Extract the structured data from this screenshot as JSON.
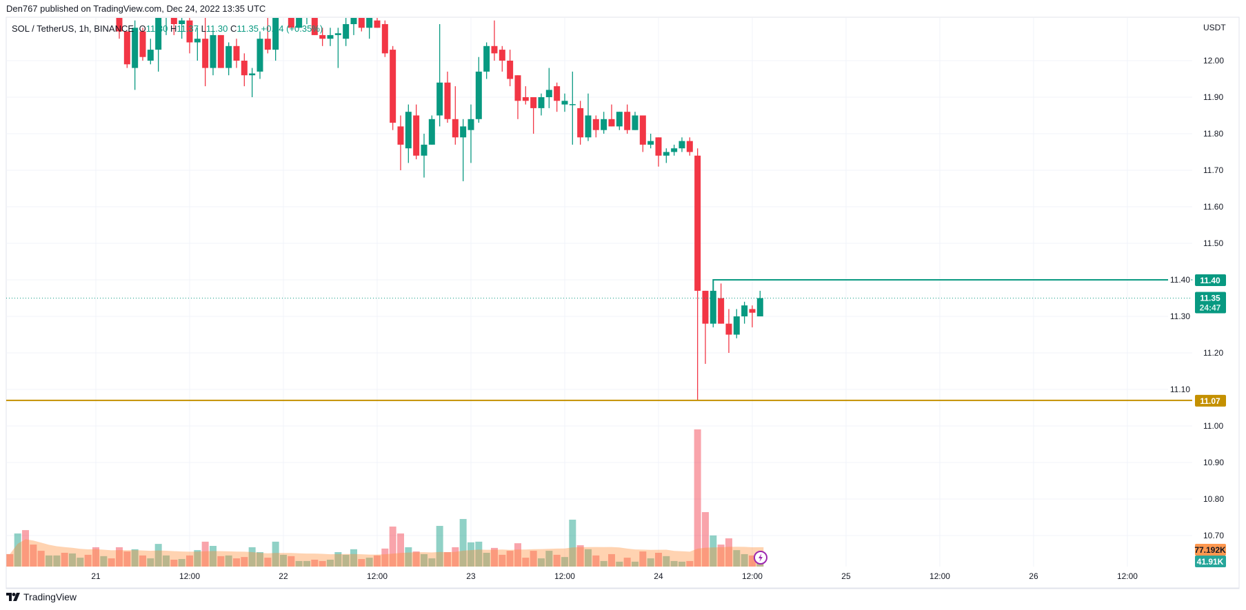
{
  "header": {
    "published": "Den767 published on TradingView.com, Dec 24, 2022 13:35 UTC"
  },
  "legend": {
    "symbol": "SOL / TetherUS, 1h, BINANCE",
    "open_label": "O",
    "open": "11.30",
    "high_label": "H",
    "high": "11.37",
    "low_label": "L",
    "low": "11.30",
    "close_label": "C",
    "close": "11.35",
    "change": "+0.04 (+0.35%)"
  },
  "footer": {
    "brand": "TradingView"
  },
  "colors": {
    "up": "#089981",
    "down": "#F23645",
    "support": "#C49000",
    "volume_ma": "#FF9850",
    "alert_icon": "#9C27B0"
  },
  "icons": {
    "alert": "lightning-icon",
    "brand": "tradingview-logo-icon"
  },
  "chart_data": {
    "type": "candlestick",
    "interval": "1h",
    "currency_label": "USDT",
    "price_ticks": [
      "12.00",
      "11.90",
      "11.80",
      "11.70",
      "11.60",
      "11.50",
      "11.40",
      "11.30",
      "11.20",
      "11.10",
      "11.00",
      "10.90",
      "10.80",
      "10.70"
    ],
    "ylim": [
      10.63,
      12.12
    ],
    "grid": true,
    "time_ticks": [
      {
        "label": "21",
        "hours": 0
      },
      {
        "label": "12:00",
        "hours": 12
      },
      {
        "label": "22",
        "hours": 24
      },
      {
        "label": "12:00",
        "hours": 36
      },
      {
        "label": "23",
        "hours": 48
      },
      {
        "label": "12:00",
        "hours": 60
      },
      {
        "label": "24",
        "hours": 72
      },
      {
        "label": "12:00",
        "hours": 84
      },
      {
        "label": "25",
        "hours": 96
      },
      {
        "label": "12:00",
        "hours": 108
      },
      {
        "label": "26",
        "hours": 120
      },
      {
        "label": "12:00",
        "hours": 132
      }
    ],
    "first_candle": "Dec 21 03:00",
    "candles_ohlc": [
      [
        12.15,
        12.17,
        12.06,
        12.08
      ],
      [
        12.08,
        12.08,
        11.98,
        11.99
      ],
      [
        11.98,
        12.11,
        11.92,
        12.09
      ],
      [
        12.08,
        12.09,
        12.0,
        12.01
      ],
      [
        12.0,
        12.06,
        11.99,
        12.03
      ],
      [
        12.03,
        12.15,
        11.97,
        12.14
      ],
      [
        12.14,
        12.18,
        12.07,
        12.16
      ],
      [
        12.16,
        12.18,
        12.07,
        12.1
      ],
      [
        12.1,
        12.14,
        12.06,
        12.11
      ],
      [
        12.11,
        12.14,
        12.02,
        12.05
      ],
      [
        12.05,
        12.09,
        12.0,
        12.06
      ],
      [
        12.06,
        12.14,
        11.93,
        11.98
      ],
      [
        11.98,
        12.08,
        11.96,
        12.07
      ],
      [
        12.07,
        12.07,
        11.98,
        11.98
      ],
      [
        11.98,
        12.05,
        11.96,
        12.04
      ],
      [
        12.04,
        12.06,
        11.98,
        12.0
      ],
      [
        12.0,
        12.02,
        11.93,
        11.96
      ],
      [
        11.96,
        11.98,
        11.9,
        11.965
      ],
      [
        11.97,
        12.08,
        11.95,
        12.06
      ],
      [
        12.06,
        12.14,
        12.02,
        12.03
      ],
      [
        12.03,
        12.16,
        12.0,
        12.15
      ],
      [
        12.15,
        12.19,
        12.12,
        12.17
      ],
      [
        12.17,
        12.18,
        12.09,
        12.09
      ],
      [
        12.09,
        12.15,
        12.09,
        12.14
      ],
      [
        12.14,
        12.17,
        12.1,
        12.16
      ],
      [
        12.16,
        12.17,
        12.07,
        12.07
      ],
      [
        12.07,
        12.09,
        12.04,
        12.06
      ],
      [
        12.06,
        12.09,
        12.04,
        12.07
      ],
      [
        12.07,
        12.09,
        11.98,
        12.075
      ],
      [
        12.06,
        12.12,
        12.04,
        12.1
      ],
      [
        12.1,
        12.15,
        12.07,
        12.13
      ],
      [
        12.13,
        12.15,
        12.08,
        12.09
      ],
      [
        12.09,
        12.16,
        12.06,
        12.14
      ],
      [
        12.11,
        12.12,
        12.09,
        12.09
      ],
      [
        12.1,
        12.11,
        12.01,
        12.02
      ],
      [
        12.03,
        12.04,
        11.81,
        11.83
      ],
      [
        11.82,
        11.85,
        11.7,
        11.77
      ],
      [
        11.76,
        11.88,
        11.72,
        11.86
      ],
      [
        11.85,
        11.88,
        11.73,
        11.74
      ],
      [
        11.74,
        11.8,
        11.68,
        11.77
      ],
      [
        11.77,
        11.85,
        11.77,
        11.84
      ],
      [
        11.85,
        12.1,
        11.82,
        11.94
      ],
      [
        11.94,
        11.97,
        11.83,
        11.84
      ],
      [
        11.84,
        11.93,
        11.77,
        11.79
      ],
      [
        11.79,
        11.84,
        11.67,
        11.82
      ],
      [
        11.81,
        11.88,
        11.72,
        11.84
      ],
      [
        11.84,
        12.01,
        11.83,
        11.97
      ],
      [
        11.97,
        12.05,
        11.95,
        12.04
      ],
      [
        12.04,
        12.11,
        12.0,
        12.02
      ],
      [
        12.03,
        12.04,
        11.97,
        12.0
      ],
      [
        12.0,
        12.03,
        11.93,
        11.95
      ],
      [
        11.96,
        11.96,
        11.84,
        11.89
      ],
      [
        11.9,
        11.93,
        11.88,
        11.89
      ],
      [
        11.9,
        11.9,
        11.8,
        11.87
      ],
      [
        11.87,
        11.91,
        11.85,
        11.9
      ],
      [
        11.9,
        11.98,
        11.87,
        11.92
      ],
      [
        11.93,
        11.94,
        11.86,
        11.89
      ],
      [
        11.88,
        11.91,
        11.86,
        11.89
      ],
      [
        11.88,
        11.97,
        11.77,
        11.881
      ],
      [
        11.87,
        11.89,
        11.77,
        11.79
      ],
      [
        11.79,
        11.91,
        11.78,
        11.85
      ],
      [
        11.84,
        11.85,
        11.79,
        11.81
      ],
      [
        11.81,
        11.86,
        11.8,
        11.84
      ],
      [
        11.84,
        11.88,
        11.82,
        11.82
      ],
      [
        11.82,
        11.86,
        11.81,
        11.86
      ],
      [
        11.86,
        11.88,
        11.8,
        11.81
      ],
      [
        11.81,
        11.86,
        11.81,
        11.85
      ],
      [
        11.85,
        11.85,
        11.75,
        11.77
      ],
      [
        11.77,
        11.8,
        11.76,
        11.78
      ],
      [
        11.79,
        11.79,
        11.71,
        11.74
      ],
      [
        11.74,
        11.76,
        11.72,
        11.75
      ],
      [
        11.75,
        11.77,
        11.74,
        11.76
      ],
      [
        11.76,
        11.79,
        11.75,
        11.78
      ],
      [
        11.78,
        11.79,
        11.74,
        11.75
      ],
      [
        11.74,
        11.76,
        11.07,
        11.37
      ],
      [
        11.37,
        11.37,
        11.17,
        11.28
      ],
      [
        11.28,
        11.4,
        11.27,
        11.37
      ],
      [
        11.35,
        11.39,
        11.28,
        11.28
      ],
      [
        11.28,
        11.32,
        11.2,
        11.25
      ],
      [
        11.25,
        11.32,
        11.24,
        11.3
      ],
      [
        11.3,
        11.34,
        11.28,
        11.33
      ],
      [
        11.32,
        11.33,
        11.27,
        11.31
      ],
      [
        11.3,
        11.37,
        11.3,
        11.35
      ]
    ],
    "volume_first_bar": "Dec 20 13:00",
    "volume_pre_direction": [
      "down",
      "up",
      "down",
      "down",
      "down",
      "up",
      "up",
      "down",
      "up",
      "up",
      "down",
      "down",
      "up",
      "down"
    ],
    "volume_k": [
      56,
      149,
      164,
      99,
      71,
      50,
      50,
      62,
      59,
      40,
      53,
      87,
      47,
      37,
      87,
      68,
      78,
      50,
      37,
      102,
      50,
      31,
      34,
      50,
      74,
      112,
      93,
      47,
      50,
      37,
      43,
      87,
      65,
      40,
      112,
      53,
      47,
      25,
      25,
      31,
      25,
      31,
      65,
      53,
      78,
      34,
      40,
      50,
      81,
      180,
      149,
      87,
      68,
      56,
      37,
      183,
      65,
      87,
      214,
      109,
      112,
      62,
      84,
      53,
      71,
      105,
      40,
      71,
      37,
      71,
      53,
      43,
      211,
      96,
      78,
      50,
      25,
      56,
      22,
      40,
      22,
      68,
      37,
      62,
      47,
      25,
      22,
      25,
      617,
      245,
      140,
      99,
      127,
      74,
      56,
      50,
      41.91
    ],
    "levels": {
      "resistance": {
        "value": 11.4,
        "label": "11.40"
      },
      "support": {
        "value": 11.07,
        "label": "11.07"
      },
      "last_price": {
        "value": 11.35,
        "label": "11.35",
        "countdown": "24:47"
      }
    },
    "volume_ma_label": "77.192K",
    "volume_last_label": "41.91K"
  }
}
